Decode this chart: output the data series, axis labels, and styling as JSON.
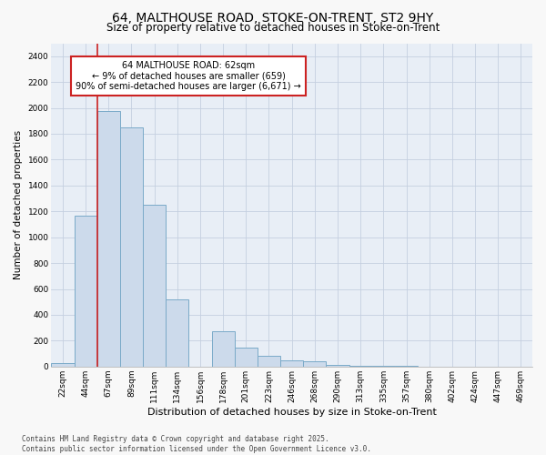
{
  "title_line1": "64, MALTHOUSE ROAD, STOKE-ON-TRENT, ST2 9HY",
  "title_line2": "Size of property relative to detached houses in Stoke-on-Trent",
  "xlabel": "Distribution of detached houses by size in Stoke-on-Trent",
  "ylabel": "Number of detached properties",
  "categories": [
    "22sqm",
    "44sqm",
    "67sqm",
    "89sqm",
    "111sqm",
    "134sqm",
    "156sqm",
    "178sqm",
    "201sqm",
    "223sqm",
    "246sqm",
    "268sqm",
    "290sqm",
    "313sqm",
    "335sqm",
    "357sqm",
    "380sqm",
    "402sqm",
    "424sqm",
    "447sqm",
    "469sqm"
  ],
  "values": [
    30,
    1170,
    1975,
    1850,
    1250,
    520,
    0,
    270,
    145,
    85,
    45,
    40,
    15,
    5,
    5,
    3,
    2,
    1,
    1,
    1,
    0
  ],
  "bar_color": "#ccdaeb",
  "bar_edge_color": "#7aaac8",
  "vline_color": "#cc2222",
  "grid_color": "#c5cfe0",
  "background_color": "#e8eef6",
  "fig_background": "#f8f8f8",
  "ylim": [
    0,
    2500
  ],
  "yticks": [
    0,
    200,
    400,
    600,
    800,
    1000,
    1200,
    1400,
    1600,
    1800,
    2000,
    2200,
    2400
  ],
  "annotation_text": "64 MALTHOUSE ROAD: 62sqm\n← 9% of detached houses are smaller (659)\n90% of semi-detached houses are larger (6,671) →",
  "annotation_box_color": "#ffffff",
  "annotation_box_edge": "#cc2222",
  "footnote": "Contains HM Land Registry data © Crown copyright and database right 2025.\nContains public sector information licensed under the Open Government Licence v3.0.",
  "title_fontsize": 10,
  "subtitle_fontsize": 8.5,
  "tick_fontsize": 6.5,
  "ylabel_fontsize": 7.5,
  "xlabel_fontsize": 8,
  "annot_fontsize": 7,
  "footnote_fontsize": 5.5
}
